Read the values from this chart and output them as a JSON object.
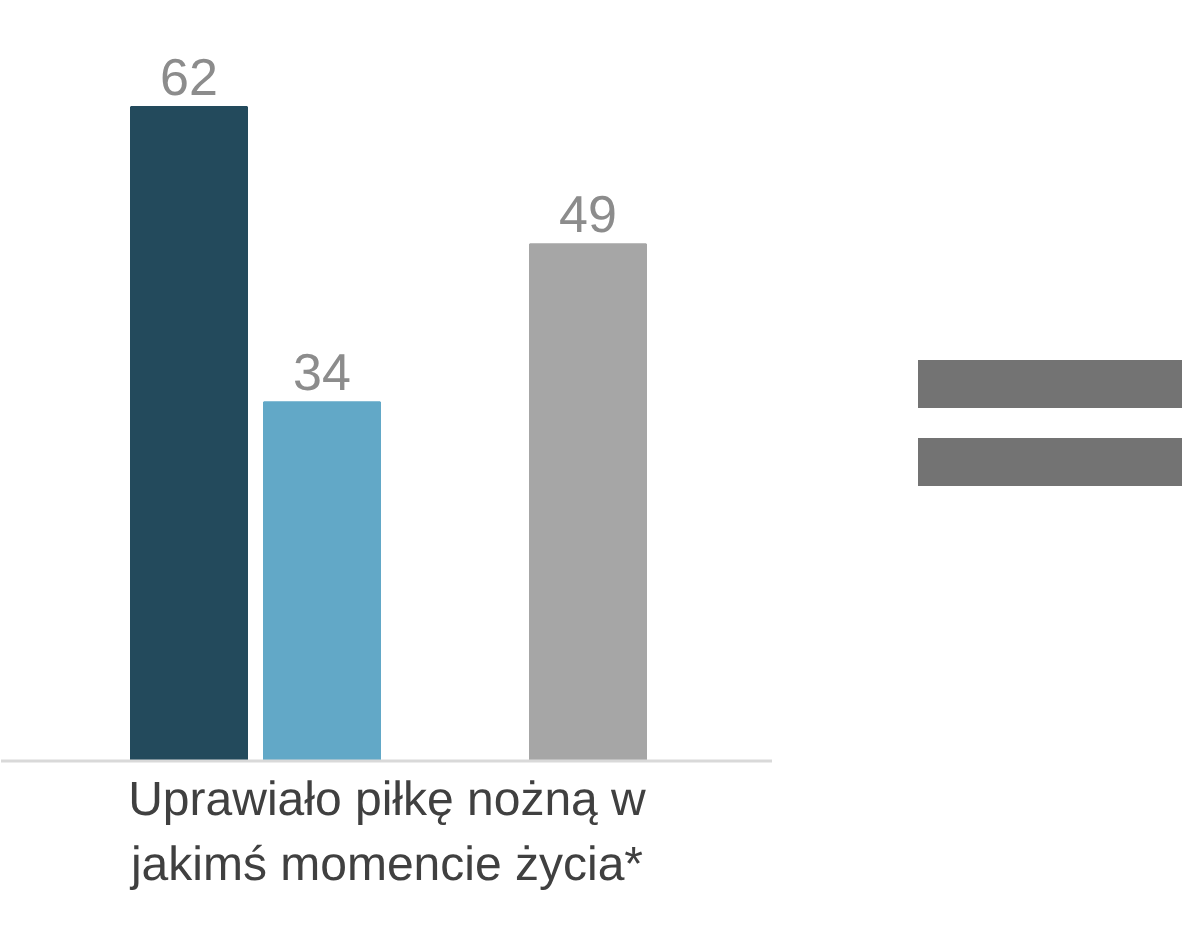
{
  "chart_data": {
    "type": "bar",
    "categories": [
      null,
      null,
      null
    ],
    "values": [
      62,
      34,
      49
    ],
    "colors": [
      "#234a5c",
      "#62a8c7",
      "#a6a6a6"
    ],
    "xlabel": "Uprawiało piłkę nożną w jakimś momencie życia*",
    "data_labels": true
  }
}
